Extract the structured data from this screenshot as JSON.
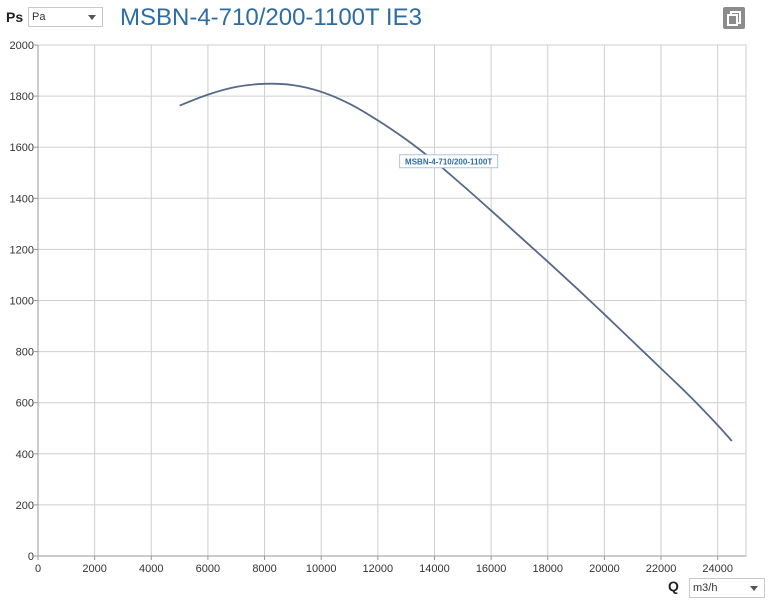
{
  "header": {
    "y_axis_name": "Ps",
    "y_unit_selected": "Pa",
    "title": "MSBN-4-710/200-1100T IE3"
  },
  "footer": {
    "x_axis_name": "Q",
    "x_unit_selected": "m3/h"
  },
  "icons": {
    "copy": "copy-icon",
    "dropdown": "chevron-down-icon"
  },
  "colors": {
    "curve": "#56698a",
    "title": "#2e6da4",
    "grid": "#cfcfcf",
    "axis": "#999999"
  },
  "chart_data": {
    "type": "line",
    "title": "MSBN-4-710/200-1100T IE3",
    "xlabel": "Q",
    "ylabel": "Ps",
    "xlim": [
      0,
      25000
    ],
    "ylim": [
      0,
      2000
    ],
    "x_ticks": [
      0,
      2000,
      4000,
      6000,
      8000,
      10000,
      12000,
      14000,
      16000,
      18000,
      20000,
      22000,
      24000
    ],
    "y_ticks": [
      0,
      200,
      400,
      600,
      800,
      1000,
      1200,
      1400,
      1600,
      1800,
      2000
    ],
    "grid": true,
    "series": [
      {
        "name": "MSBN-4-710/200-1100T",
        "x": [
          5000,
          6000,
          7000,
          8000,
          9000,
          10000,
          11000,
          12000,
          13000,
          14000,
          15000,
          16000,
          17000,
          18000,
          19000,
          20000,
          21000,
          22000,
          23000,
          24000,
          24500
        ],
        "y": [
          1763,
          1806,
          1836,
          1848,
          1843,
          1817,
          1770,
          1705,
          1630,
          1545,
          1450,
          1352,
          1252,
          1152,
          1050,
          946,
          840,
          734,
          627,
          512,
          450
        ]
      }
    ]
  }
}
